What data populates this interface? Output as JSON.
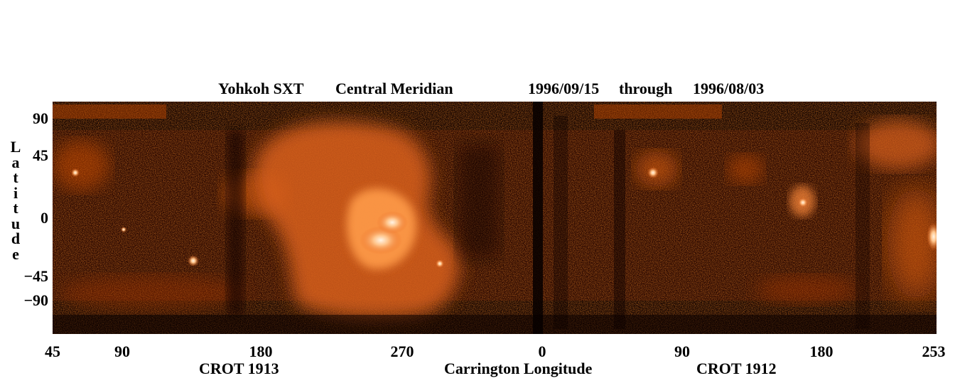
{
  "title": {
    "instrument": "Yohkoh SXT",
    "mode": "Central Meridian",
    "start_date": "1996/09/15",
    "through": "through",
    "end_date": "1996/08/03"
  },
  "y_axis": {
    "label_letters": [
      "L",
      "a",
      "t",
      "i",
      "t",
      "u",
      "d",
      "e"
    ],
    "ticks": [
      "90",
      "45",
      "0",
      "−45",
      "−90"
    ]
  },
  "x_axis": {
    "ticks": [
      "45",
      "90",
      "180",
      "270",
      "0",
      "90",
      "180",
      "253"
    ],
    "label": "Carrington Longitude",
    "rotation_left": "CROT 1913",
    "rotation_right": "CROT 1912"
  },
  "colors": {
    "background": "#ffffff",
    "map_dark": "#0a0000",
    "map_mid": "#b33a00",
    "map_bright": "#ff9b4a",
    "map_peak": "#fff0e0"
  }
}
